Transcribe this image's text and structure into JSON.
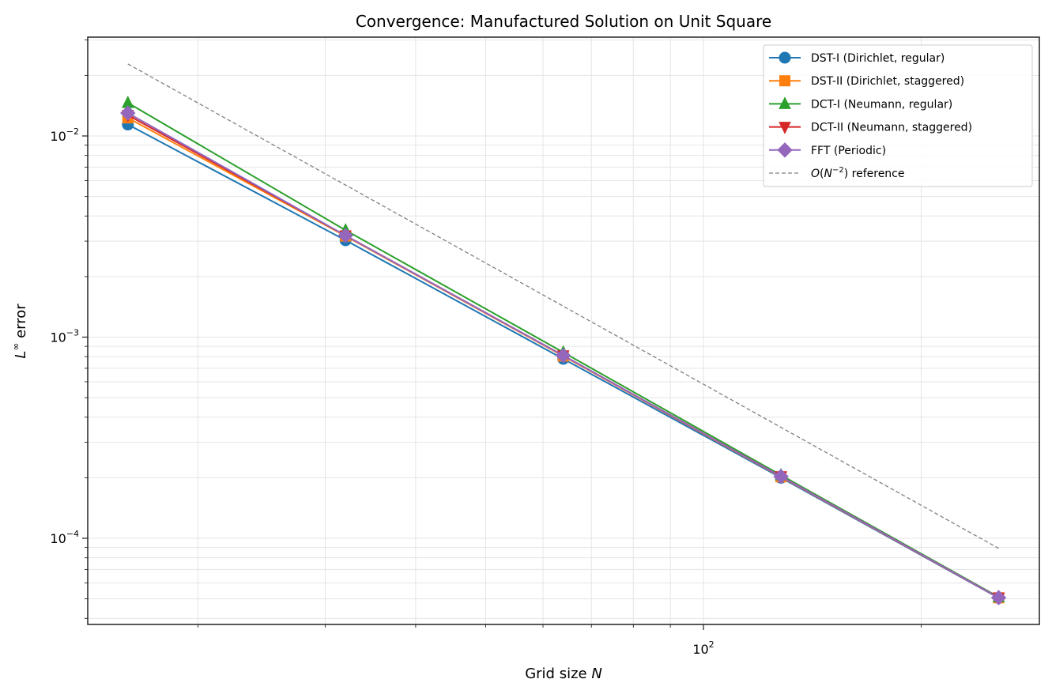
{
  "chart_data": {
    "type": "line",
    "title": "Convergence: Manufactured Solution on Unit Square",
    "xlabel": "Grid size N",
    "ylabel": "L∞ error",
    "xscale": "log",
    "yscale": "log",
    "xlim": [
      14.1,
      291
    ],
    "ylim": [
      3.73e-05,
      0.031
    ],
    "grid": true,
    "legend_position": "upper right",
    "x": [
      16,
      32,
      64,
      128,
      256
    ],
    "xticks": [
      {
        "value": 100,
        "label": "10",
        "sup": "2"
      }
    ],
    "yticks": [
      {
        "value": 0.01,
        "label": "10",
        "sup": "−2"
      },
      {
        "value": 0.001,
        "label": "10",
        "sup": "−3"
      },
      {
        "value": 0.0001,
        "label": "10",
        "sup": "−4"
      }
    ],
    "series": [
      {
        "name": "DST-I (Dirichlet, regular)",
        "color": "#1f77b4",
        "marker": "circle",
        "values": [
          0.0114,
          0.00303,
          0.00078,
          0.0002,
          5.05e-05
        ]
      },
      {
        "name": "DST-II (Dirichlet, staggered)",
        "color": "#ff7f0e",
        "marker": "square",
        "values": [
          0.0123,
          0.00318,
          0.000805,
          0.000202,
          5.06e-05
        ]
      },
      {
        "name": "DCT-I (Neumann, regular)",
        "color": "#2ca02c",
        "marker": "triangle-up",
        "values": [
          0.0146,
          0.0034,
          0.00084,
          0.000206,
          5.1e-05
        ]
      },
      {
        "name": "DCT-II (Neumann, staggered)",
        "color": "#d62728",
        "marker": "triangle-down",
        "values": [
          0.0127,
          0.0032,
          0.00081,
          0.000203,
          5.07e-05
        ]
      },
      {
        "name": "FFT (Periodic)",
        "color": "#9467bd",
        "marker": "diamond",
        "values": [
          0.013,
          0.0032,
          0.00081,
          0.000203,
          5.07e-05
        ]
      },
      {
        "name": "O(N^-2) reference",
        "color": "#808080",
        "marker": "none",
        "dashed": true,
        "values": [
          0.0228,
          0.0057,
          0.001425,
          0.000356,
          8.91e-05
        ]
      }
    ]
  },
  "legend": {
    "items": [
      {
        "label": "DST-I (Dirichlet, regular)"
      },
      {
        "label": "DST-II (Dirichlet, staggered)"
      },
      {
        "label": "DCT-I (Neumann, regular)"
      },
      {
        "label": "DCT-II (Neumann, staggered)"
      },
      {
        "label": "FFT (Periodic)"
      },
      {
        "label_prefix": "O(N",
        "label_sup": "−2",
        "label_suffix": ") reference"
      }
    ]
  },
  "labels": {
    "title": "Convergence: Manufactured Solution on Unit Square",
    "xlabel_text": "Grid size ",
    "xlabel_var": "N",
    "ylabel_var": "L",
    "ylabel_sup": "∞",
    "ylabel_text": " error"
  }
}
